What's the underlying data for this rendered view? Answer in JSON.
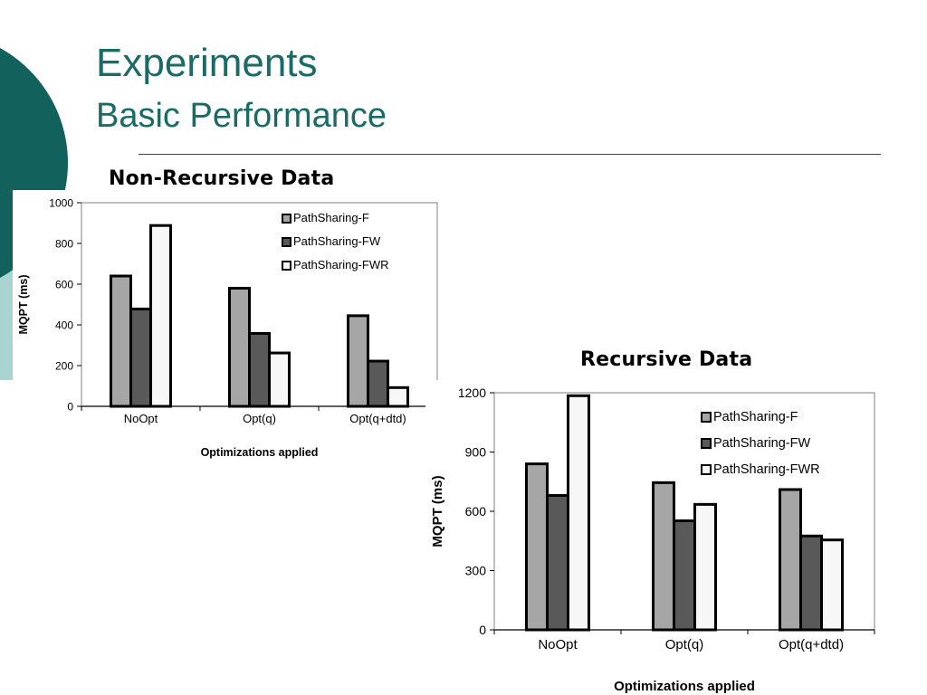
{
  "slide": {
    "title": "Experiments",
    "subtitle": "Basic Performance"
  },
  "theme": {
    "title_color": "#1a6b65",
    "deco_dark": "#12615c",
    "deco_light": "#a9d4d1"
  },
  "charts": {
    "non_recursive_heading": "Non-Recursive Data",
    "recursive_heading": "Recursive Data"
  },
  "chart_data": [
    {
      "type": "bar",
      "categories": [
        "NoOpt",
        "Opt(q)",
        "Opt(q+dtd)"
      ],
      "series": [
        {
          "name": "PathSharing-F",
          "values": [
            640,
            580,
            445
          ],
          "color": "#a6a6a6"
        },
        {
          "name": "PathSharing-FW",
          "values": [
            478,
            358,
            222
          ],
          "color": "#595959"
        },
        {
          "name": "PathSharing-FWR",
          "values": [
            888,
            262,
            92
          ],
          "color": "#f7f7f7"
        }
      ],
      "xlabel": "Optimizations applied",
      "ylabel": "MQPT (ms)",
      "ylim": [
        0,
        1000
      ],
      "yticks": [
        0,
        200,
        400,
        600,
        800,
        1000
      ],
      "legend": "top-right",
      "grid": false
    },
    {
      "type": "bar",
      "categories": [
        "NoOpt",
        "Opt(q)",
        "Opt(q+dtd)"
      ],
      "series": [
        {
          "name": "PathSharing-F",
          "values": [
            840,
            745,
            710
          ],
          "color": "#a6a6a6"
        },
        {
          "name": "PathSharing-FW",
          "values": [
            680,
            552,
            475
          ],
          "color": "#595959"
        },
        {
          "name": "PathSharing-FWR",
          "values": [
            1185,
            635,
            455
          ],
          "color": "#f7f7f7"
        }
      ],
      "xlabel": "Optimizations applied",
      "ylabel": "MQPT (ms)",
      "ylim": [
        0,
        1200
      ],
      "yticks": [
        0,
        300,
        600,
        900,
        1200
      ],
      "legend": "top-right",
      "grid": false
    }
  ]
}
